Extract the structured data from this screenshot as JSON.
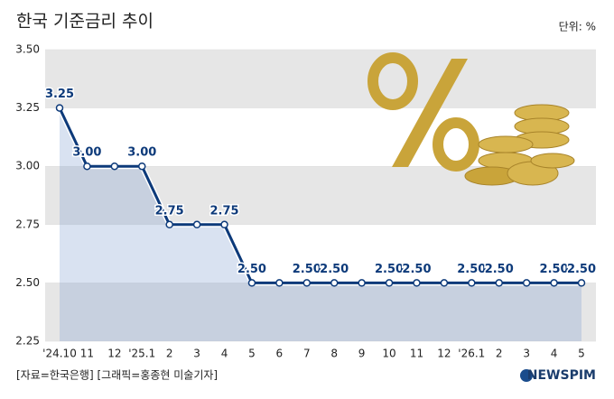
{
  "chart_data": {
    "type": "line",
    "title": "한국 기준금리 추이",
    "unit": "단위: %",
    "categories": [
      "'24.10",
      "11",
      "12",
      "'25.1",
      "2",
      "3",
      "4",
      "5",
      "6",
      "7",
      "8",
      "9",
      "10",
      "11",
      "12",
      "'26.1",
      "2",
      "3",
      "4",
      "5"
    ],
    "series": [
      {
        "name": "기준금리",
        "color": "#0d3a7a",
        "values": [
          3.25,
          3.0,
          3.0,
          3.0,
          2.75,
          2.75,
          2.75,
          2.5,
          2.5,
          2.5,
          2.5,
          2.5,
          2.5,
          2.5,
          2.5,
          2.5,
          2.5,
          2.5,
          2.5,
          2.5
        ],
        "value_labels": [
          "3.25",
          "3.00",
          null,
          "3.00",
          "2.75",
          null,
          "2.75",
          "2.50",
          null,
          "2.50",
          "2.50",
          null,
          "2.50",
          "2.50",
          null,
          "2.50",
          "2.50",
          null,
          "2.50",
          "2.50"
        ]
      }
    ],
    "ylim": [
      2.25,
      3.5
    ],
    "yticks": [
      {
        "value": 2.25,
        "label": "2.25"
      },
      {
        "value": 2.5,
        "label": "2.50"
      },
      {
        "value": 2.75,
        "label": "2.75"
      },
      {
        "value": 3.0,
        "label": "3.00"
      },
      {
        "value": 3.25,
        "label": "3.25"
      },
      {
        "value": 3.5,
        "label": "3.50"
      }
    ],
    "grid": true,
    "source": "[자료=한국은행] [그래픽=홍종현 미술기자]",
    "logo": "NEWSPIM"
  }
}
